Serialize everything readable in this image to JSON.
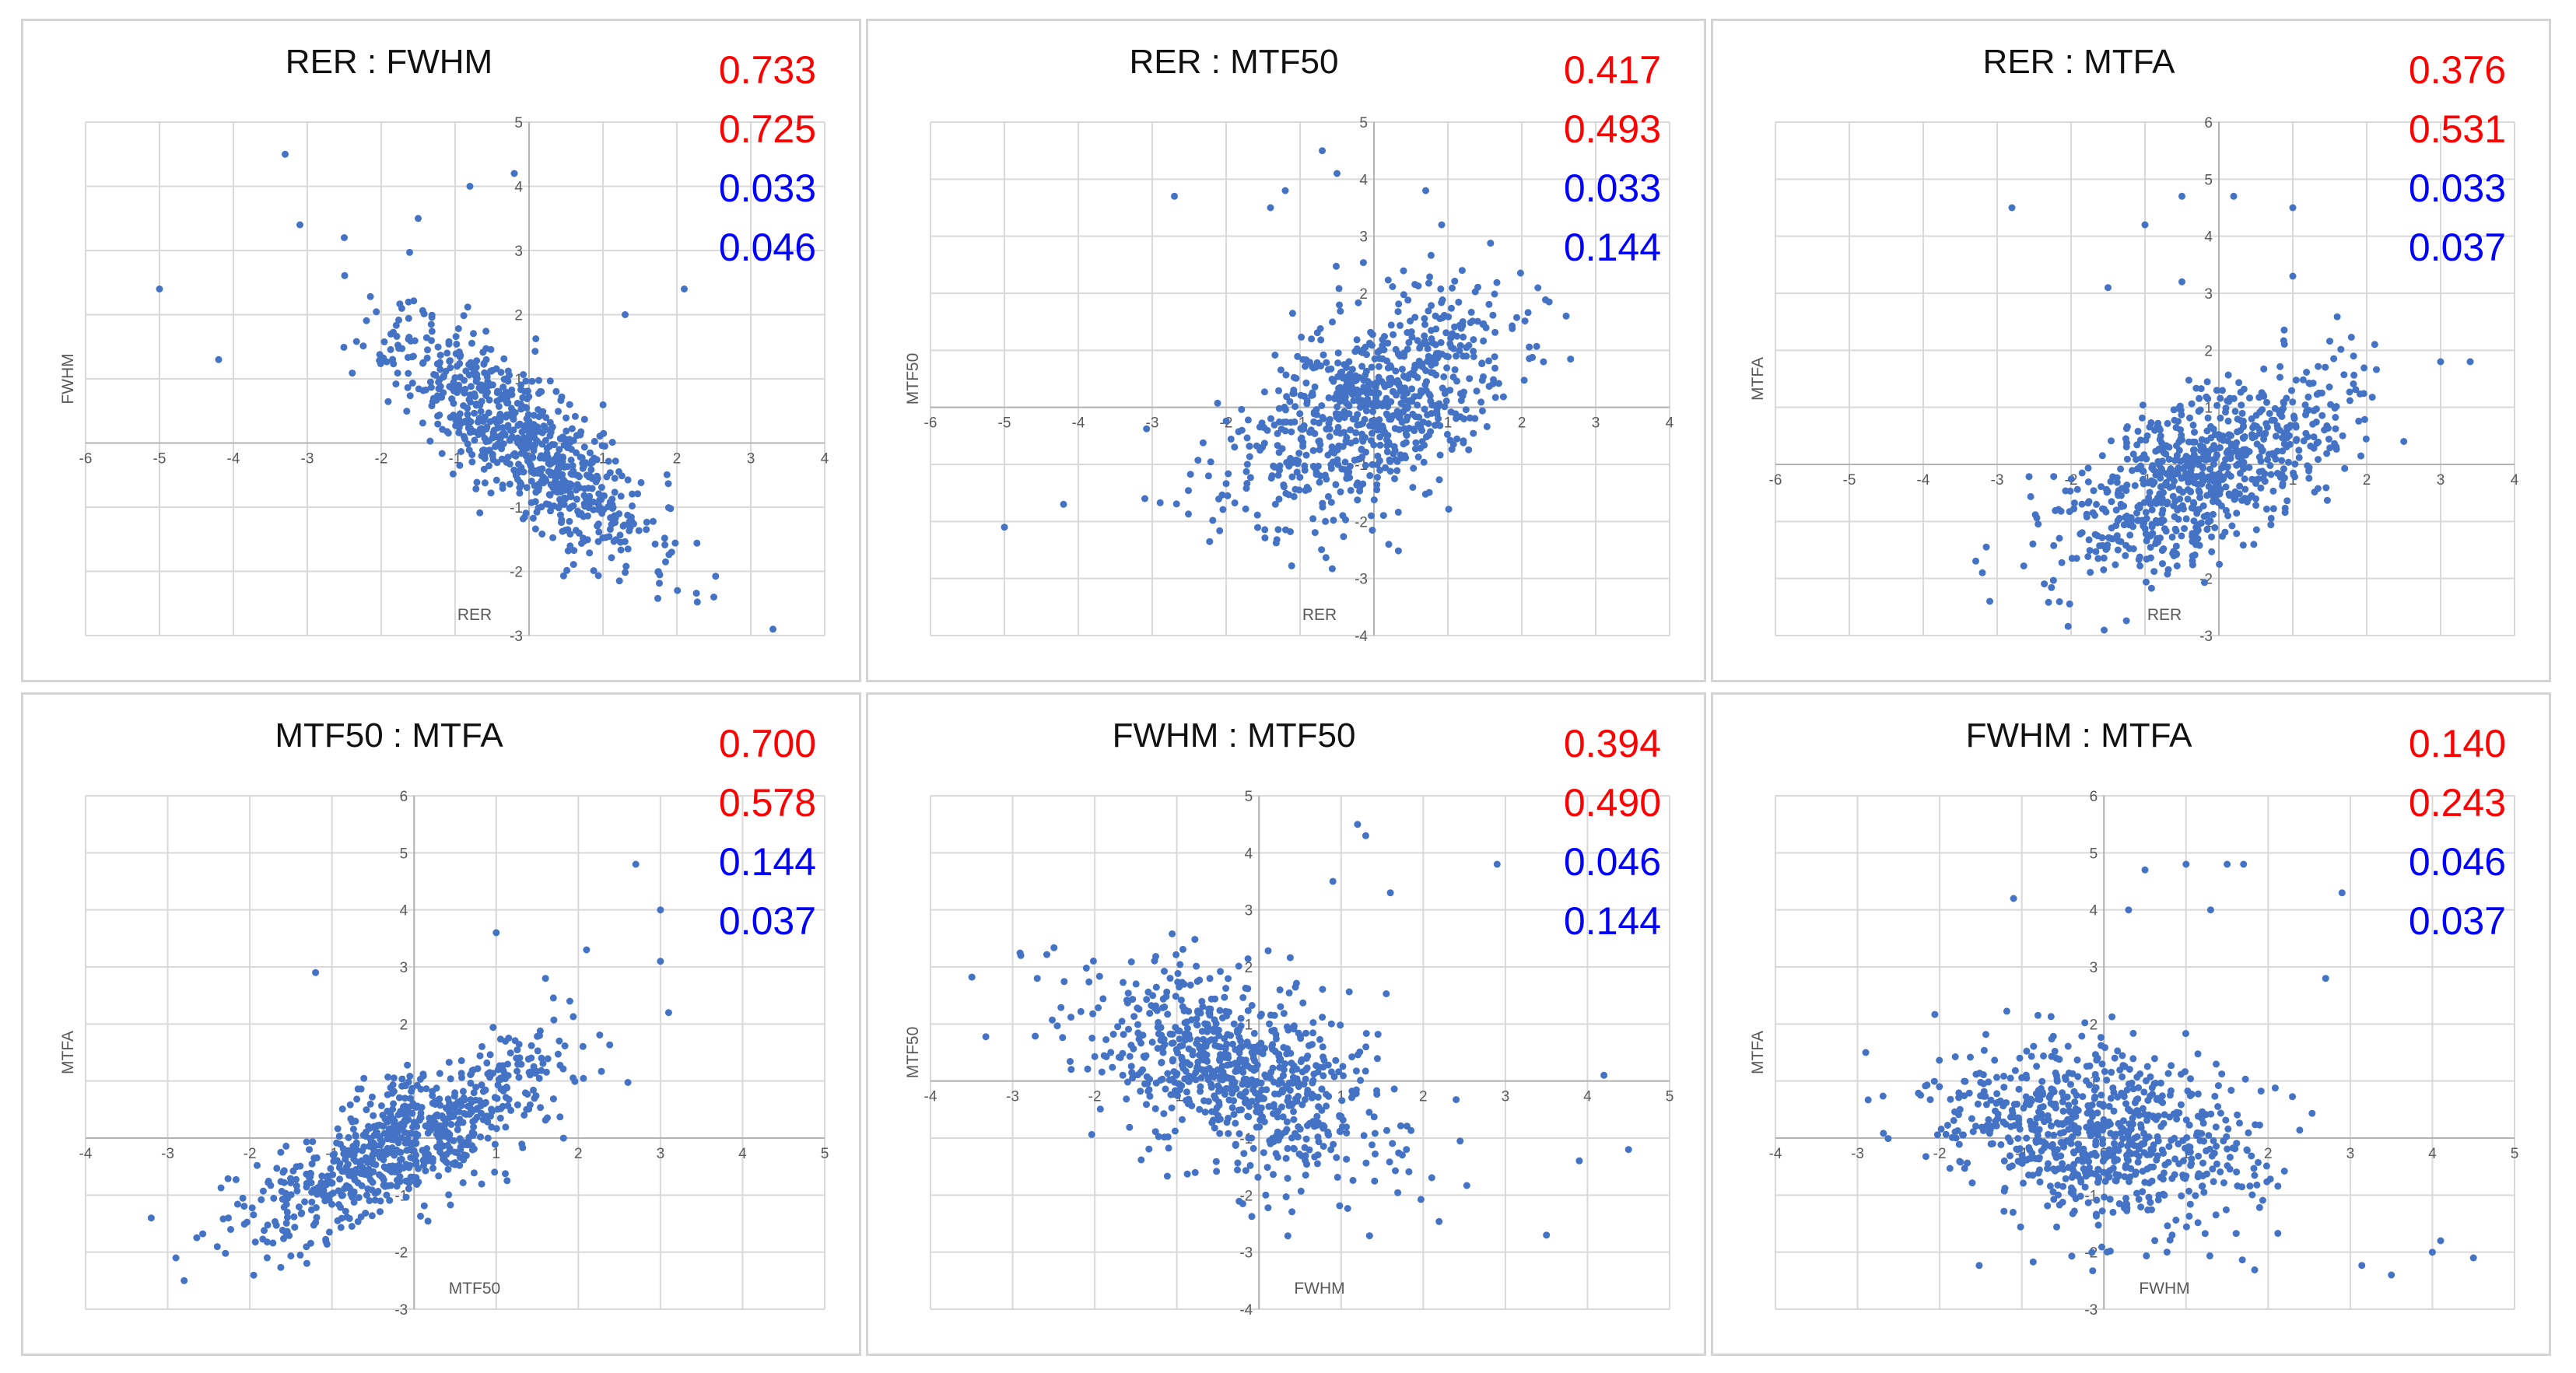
{
  "chart_data": [
    {
      "type": "scatter",
      "title": "RER : FWHM",
      "xlabel": "RER",
      "ylabel": "FWHM",
      "xlim": [
        -6,
        4
      ],
      "ylim": [
        -3,
        5
      ],
      "xticks": [
        -6,
        -5,
        -4,
        -3,
        -2,
        -1,
        0,
        1,
        2,
        3,
        4
      ],
      "yticks": [
        -3,
        -2,
        -1,
        0,
        1,
        2,
        3,
        4,
        5
      ],
      "stats": [
        "0.733",
        "0.725",
        "0.033",
        "0.046"
      ],
      "slope": -0.85,
      "noise": 0.55,
      "xcenter": -0.1,
      "xspread": 0.85,
      "seed": 11,
      "outliers": [
        [
          -3.3,
          4.5
        ],
        [
          -3.1,
          3.4
        ],
        [
          -2.5,
          3.2
        ],
        [
          -5.0,
          2.4
        ],
        [
          -4.2,
          1.3
        ],
        [
          -0.8,
          4.0
        ],
        [
          -0.2,
          4.2
        ],
        [
          3.3,
          -2.9
        ],
        [
          2.5,
          -2.4
        ],
        [
          1.3,
          2.0
        ],
        [
          2.1,
          2.4
        ],
        [
          -1.5,
          3.5
        ]
      ]
    },
    {
      "type": "scatter",
      "title": "RER : MTF50",
      "xlabel": "RER",
      "ylabel": "MTF50",
      "xlim": [
        -6,
        4
      ],
      "ylim": [
        -4,
        5
      ],
      "xticks": [
        -6,
        -5,
        -4,
        -3,
        -2,
        -1,
        0,
        1,
        2,
        3,
        4
      ],
      "yticks": [
        -4,
        -3,
        -2,
        -1,
        0,
        1,
        2,
        3,
        4,
        5
      ],
      "stats": [
        "0.417",
        "0.493",
        "0.033",
        "0.144"
      ],
      "slope": 0.55,
      "noise": 0.85,
      "xcenter": -0.1,
      "xspread": 0.95,
      "seed": 23,
      "outliers": [
        [
          -5.0,
          -2.1
        ],
        [
          -4.2,
          -1.7
        ],
        [
          -2.7,
          3.7
        ],
        [
          -1.4,
          3.5
        ],
        [
          -1.2,
          3.8
        ],
        [
          -0.7,
          4.5
        ],
        [
          -0.5,
          4.1
        ],
        [
          0.7,
          3.8
        ],
        [
          -3.1,
          -1.6
        ],
        [
          2.6,
          1.6
        ],
        [
          0.2,
          -2.4
        ]
      ]
    },
    {
      "type": "scatter",
      "title": "RER : MTFA",
      "xlabel": "RER",
      "ylabel": "MTFA",
      "xlim": [
        -6,
        4
      ],
      "ylim": [
        -3,
        6
      ],
      "xticks": [
        -6,
        -5,
        -4,
        -3,
        -2,
        -1,
        0,
        1,
        2,
        3,
        4
      ],
      "yticks": [
        -3,
        -2,
        -1,
        0,
        1,
        2,
        3,
        4,
        5,
        6
      ],
      "stats": [
        "0.376",
        "0.531",
        "0.033",
        "0.037"
      ],
      "slope": 0.55,
      "noise": 0.7,
      "xcenter": -0.2,
      "xspread": 0.95,
      "seed": 37,
      "outliers": [
        [
          -2.8,
          4.5
        ],
        [
          -1.0,
          4.2
        ],
        [
          -0.5,
          4.7
        ],
        [
          0.2,
          4.7
        ],
        [
          1.0,
          4.5
        ],
        [
          1.0,
          3.3
        ],
        [
          -3.2,
          -1.9
        ],
        [
          -3.1,
          -2.4
        ],
        [
          3.0,
          1.8
        ],
        [
          3.4,
          1.8
        ],
        [
          -1.5,
          3.1
        ],
        [
          -0.5,
          3.2
        ]
      ]
    },
    {
      "type": "scatter",
      "title": "MTF50 : MTFA",
      "xlabel": "MTF50",
      "ylabel": "MTFA",
      "xlim": [
        -4,
        5
      ],
      "ylim": [
        -3,
        6
      ],
      "xticks": [
        -4,
        -3,
        -2,
        -1,
        0,
        1,
        2,
        3,
        4,
        5
      ],
      "yticks": [
        -3,
        -2,
        -1,
        0,
        1,
        2,
        3,
        4,
        5,
        6
      ],
      "stats": [
        "0.700",
        "0.578",
        "0.144",
        "0.037"
      ],
      "slope": 0.7,
      "noise": 0.55,
      "xcenter": -0.1,
      "xspread": 0.95,
      "seed": 41,
      "outliers": [
        [
          2.7,
          4.8
        ],
        [
          3.0,
          4.0
        ],
        [
          3.0,
          3.1
        ],
        [
          3.1,
          2.2
        ],
        [
          2.1,
          3.3
        ],
        [
          1.0,
          3.6
        ],
        [
          -1.2,
          2.9
        ],
        [
          -2.9,
          -2.1
        ],
        [
          -3.2,
          -1.4
        ],
        [
          -2.8,
          -2.5
        ],
        [
          1.6,
          2.8
        ]
      ]
    },
    {
      "type": "scatter",
      "title": "FWHM : MTF50",
      "xlabel": "FWHM",
      "ylabel": "MTF50",
      "xlim": [
        -4,
        5
      ],
      "ylim": [
        -4,
        5
      ],
      "xticks": [
        -4,
        -3,
        -2,
        -1,
        0,
        1,
        2,
        3,
        4,
        5
      ],
      "yticks": [
        -4,
        -3,
        -2,
        -1,
        0,
        1,
        2,
        3,
        4,
        5
      ],
      "stats": [
        "0.394",
        "0.490",
        "0.046",
        "0.144"
      ],
      "slope": -0.45,
      "noise": 0.85,
      "xcenter": -0.2,
      "xspread": 0.95,
      "seed": 53,
      "outliers": [
        [
          1.2,
          4.5
        ],
        [
          1.3,
          4.3
        ],
        [
          2.9,
          3.8
        ],
        [
          4.2,
          0.1
        ],
        [
          4.5,
          -1.2
        ],
        [
          3.5,
          -2.7
        ],
        [
          -2.9,
          2.2
        ],
        [
          -2.7,
          1.8
        ],
        [
          1.6,
          3.3
        ],
        [
          3.9,
          -1.4
        ],
        [
          0.9,
          3.5
        ]
      ]
    },
    {
      "type": "scatter",
      "title": "FWHM : MTFA",
      "xlabel": "FWHM",
      "ylabel": "MTFA",
      "xlim": [
        -4,
        5
      ],
      "ylim": [
        -3,
        6
      ],
      "xticks": [
        -4,
        -3,
        -2,
        -1,
        0,
        1,
        2,
        3,
        4,
        5
      ],
      "yticks": [
        -3,
        -2,
        -1,
        0,
        1,
        2,
        3,
        4,
        5,
        6
      ],
      "stats": [
        "0.140",
        "0.243",
        "0.046",
        "0.037"
      ],
      "slope": -0.2,
      "noise": 0.75,
      "xcenter": -0.1,
      "xspread": 0.95,
      "seed": 67,
      "outliers": [
        [
          1.0,
          4.8
        ],
        [
          1.5,
          4.8
        ],
        [
          1.7,
          4.8
        ],
        [
          1.3,
          4.0
        ],
        [
          2.9,
          4.3
        ],
        [
          -1.1,
          4.2
        ],
        [
          4.5,
          -2.1
        ],
        [
          4.0,
          -2.0
        ],
        [
          4.1,
          -1.8
        ],
        [
          3.5,
          -2.4
        ],
        [
          2.7,
          2.8
        ],
        [
          -2.9,
          1.5
        ],
        [
          0.3,
          4.0
        ],
        [
          0.5,
          4.7
        ]
      ]
    }
  ]
}
